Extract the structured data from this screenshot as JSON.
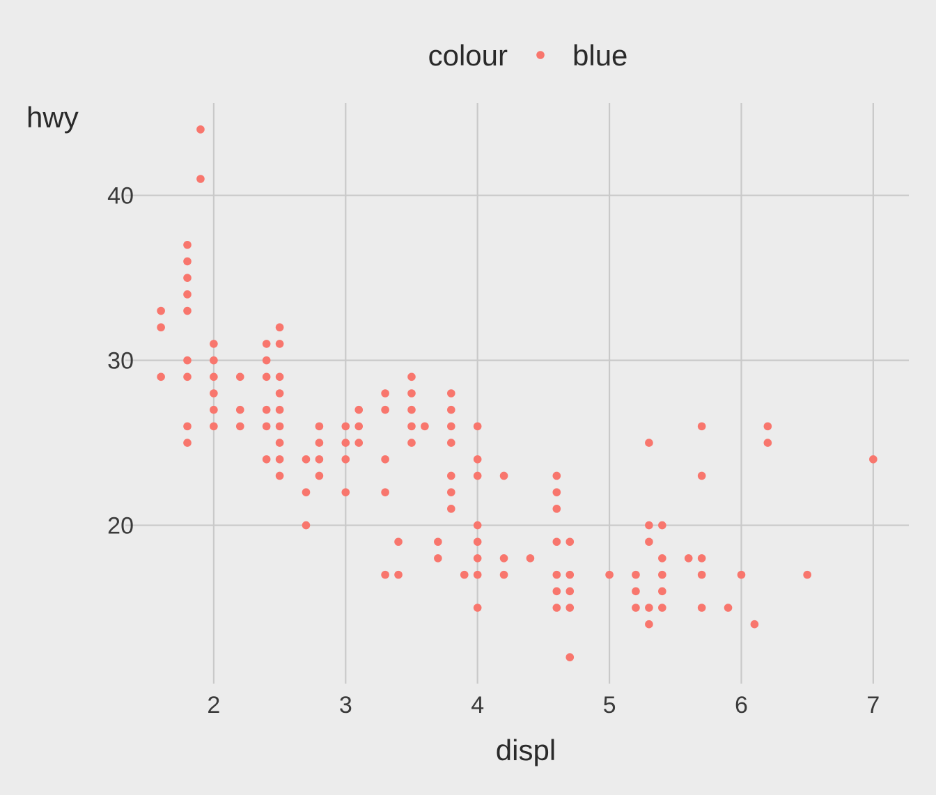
{
  "chart_data": {
    "type": "scatter",
    "title": "",
    "xlabel": "displ",
    "ylabel": "hwy",
    "xlim": [
      1.33,
      7.27
    ],
    "ylim": [
      10.4,
      45.6
    ],
    "x_ticks": [
      2,
      3,
      4,
      5,
      6,
      7
    ],
    "y_ticks": [
      20,
      30,
      40
    ],
    "grid": true,
    "legend": {
      "position": "top",
      "title": "colour",
      "entries": [
        {
          "label": "blue",
          "color": "#f8766d"
        }
      ]
    },
    "point_color": "#f8766d",
    "series": [
      {
        "name": "blue",
        "points": [
          [
            1.6,
            33
          ],
          [
            1.6,
            32
          ],
          [
            1.6,
            29
          ],
          [
            1.8,
            37
          ],
          [
            1.8,
            36
          ],
          [
            1.8,
            35
          ],
          [
            1.8,
            34
          ],
          [
            1.8,
            33
          ],
          [
            1.8,
            30
          ],
          [
            1.8,
            29
          ],
          [
            1.8,
            26
          ],
          [
            1.8,
            25
          ],
          [
            1.9,
            44
          ],
          [
            1.9,
            41
          ],
          [
            2.0,
            31
          ],
          [
            2.0,
            30
          ],
          [
            2.0,
            29
          ],
          [
            2.0,
            28
          ],
          [
            2.0,
            27
          ],
          [
            2.0,
            26
          ],
          [
            2.2,
            29
          ],
          [
            2.2,
            27
          ],
          [
            2.2,
            26
          ],
          [
            2.4,
            31
          ],
          [
            2.4,
            30
          ],
          [
            2.4,
            29
          ],
          [
            2.4,
            27
          ],
          [
            2.4,
            26
          ],
          [
            2.4,
            24
          ],
          [
            2.5,
            32
          ],
          [
            2.5,
            31
          ],
          [
            2.5,
            29
          ],
          [
            2.5,
            28
          ],
          [
            2.5,
            27
          ],
          [
            2.5,
            26
          ],
          [
            2.5,
            25
          ],
          [
            2.5,
            24
          ],
          [
            2.5,
            23
          ],
          [
            2.7,
            24
          ],
          [
            2.7,
            22
          ],
          [
            2.7,
            20
          ],
          [
            2.8,
            26
          ],
          [
            2.8,
            25
          ],
          [
            2.8,
            24
          ],
          [
            2.8,
            23
          ],
          [
            3.0,
            26
          ],
          [
            3.0,
            25
          ],
          [
            3.0,
            24
          ],
          [
            3.0,
            22
          ],
          [
            3.1,
            27
          ],
          [
            3.1,
            26
          ],
          [
            3.1,
            25
          ],
          [
            3.3,
            28
          ],
          [
            3.3,
            27
          ],
          [
            3.3,
            24
          ],
          [
            3.3,
            22
          ],
          [
            3.3,
            17
          ],
          [
            3.4,
            19
          ],
          [
            3.4,
            17
          ],
          [
            3.5,
            29
          ],
          [
            3.5,
            28
          ],
          [
            3.5,
            27
          ],
          [
            3.5,
            26
          ],
          [
            3.5,
            25
          ],
          [
            3.6,
            26
          ],
          [
            3.7,
            19
          ],
          [
            3.7,
            18
          ],
          [
            3.8,
            28
          ],
          [
            3.8,
            27
          ],
          [
            3.8,
            26
          ],
          [
            3.8,
            25
          ],
          [
            3.8,
            23
          ],
          [
            3.8,
            22
          ],
          [
            3.8,
            21
          ],
          [
            3.9,
            17
          ],
          [
            4.0,
            26
          ],
          [
            4.0,
            24
          ],
          [
            4.0,
            23
          ],
          [
            4.0,
            20
          ],
          [
            4.0,
            19
          ],
          [
            4.0,
            18
          ],
          [
            4.0,
            17
          ],
          [
            4.0,
            15
          ],
          [
            4.2,
            23
          ],
          [
            4.2,
            18
          ],
          [
            4.2,
            17
          ],
          [
            4.4,
            18
          ],
          [
            4.6,
            23
          ],
          [
            4.6,
            22
          ],
          [
            4.6,
            21
          ],
          [
            4.6,
            19
          ],
          [
            4.6,
            17
          ],
          [
            4.6,
            16
          ],
          [
            4.6,
            15
          ],
          [
            4.7,
            19
          ],
          [
            4.7,
            17
          ],
          [
            4.7,
            16
          ],
          [
            4.7,
            15
          ],
          [
            4.7,
            12
          ],
          [
            5.0,
            17
          ],
          [
            5.2,
            17
          ],
          [
            5.2,
            16
          ],
          [
            5.2,
            15
          ],
          [
            5.3,
            25
          ],
          [
            5.3,
            20
          ],
          [
            5.3,
            19
          ],
          [
            5.3,
            15
          ],
          [
            5.3,
            14
          ],
          [
            5.4,
            20
          ],
          [
            5.4,
            18
          ],
          [
            5.4,
            17
          ],
          [
            5.4,
            16
          ],
          [
            5.4,
            15
          ],
          [
            5.6,
            18
          ],
          [
            5.7,
            26
          ],
          [
            5.7,
            23
          ],
          [
            5.7,
            18
          ],
          [
            5.7,
            17
          ],
          [
            5.7,
            15
          ],
          [
            5.9,
            15
          ],
          [
            6.0,
            17
          ],
          [
            6.1,
            14
          ],
          [
            6.2,
            26
          ],
          [
            6.2,
            25
          ],
          [
            6.5,
            17
          ],
          [
            7.0,
            24
          ]
        ]
      }
    ]
  }
}
